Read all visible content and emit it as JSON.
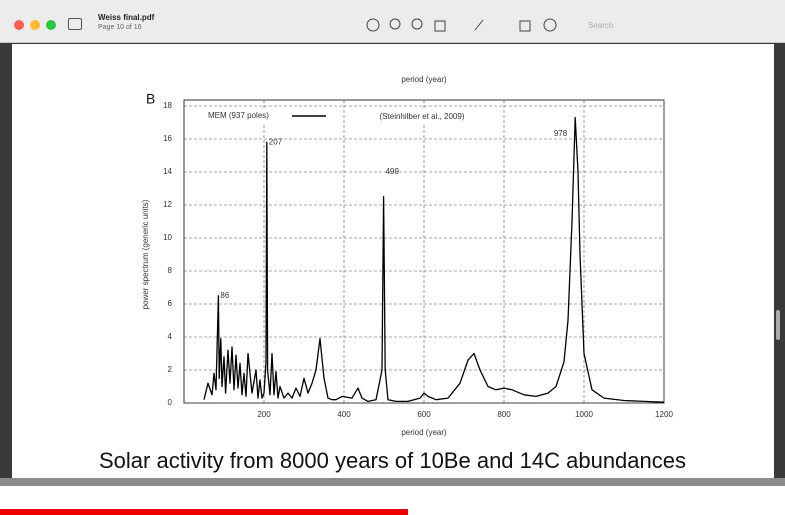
{
  "window": {
    "file_name": "Weiss final.pdf",
    "page_info": "Page 10 of 16",
    "search_placeholder": "Search"
  },
  "caption": "Solar activity from 8000 years of 10Be and 14C abundances",
  "chart_data": {
    "type": "line",
    "panel_label": "B",
    "top_axis_label": "period (year)",
    "xlabel": "period (year)",
    "ylabel": "power spectrum (generic units)",
    "legend_label": "MEM (937 poles)",
    "source_note": "(Steinhilber et al., 2009)",
    "annotations": [
      {
        "text": "86",
        "x": 86,
        "y": 6.5
      },
      {
        "text": "207",
        "x": 207,
        "y": 15.8
      },
      {
        "text": "499",
        "x": 499,
        "y": 14
      },
      {
        "text": "978",
        "x": 978,
        "y": 16.3
      }
    ],
    "xlim": [
      0,
      1200
    ],
    "ylim": [
      0,
      18
    ],
    "xticks": [
      200,
      400,
      600,
      800,
      1000,
      1200
    ],
    "yticks": [
      0,
      2,
      4,
      6,
      8,
      10,
      12,
      14,
      16,
      18
    ],
    "grid": true,
    "series": [
      {
        "name": "MEM (937 poles)",
        "color": "#000000",
        "x": [
          50,
          60,
          70,
          75,
          80,
          86,
          88,
          92,
          95,
          100,
          104,
          110,
          115,
          120,
          125,
          130,
          135,
          140,
          145,
          150,
          155,
          160,
          170,
          180,
          185,
          190,
          195,
          200,
          205,
          207,
          209,
          215,
          220,
          225,
          230,
          235,
          240,
          250,
          260,
          270,
          280,
          290,
          300,
          310,
          320,
          330,
          340,
          350,
          355,
          360,
          370,
          380,
          395,
          420,
          435,
          445,
          460,
          480,
          495,
          499,
          503,
          510,
          530,
          560,
          590,
          600,
          610,
          630,
          660,
          690,
          710,
          725,
          740,
          760,
          780,
          800,
          820,
          850,
          880,
          910,
          930,
          950,
          960,
          970,
          978,
          985,
          990,
          1000,
          1020,
          1050,
          1100,
          1150,
          1200
        ],
        "values": [
          0.2,
          1.2,
          0.5,
          1.8,
          0.8,
          6.5,
          1.5,
          3.9,
          1.0,
          2.8,
          0.6,
          3.2,
          1.2,
          3.4,
          0.8,
          2.9,
          0.9,
          2.4,
          0.5,
          1.8,
          0.4,
          3.0,
          0.6,
          2.0,
          0.3,
          1.4,
          0.3,
          0.6,
          2.5,
          15.8,
          2.0,
          0.5,
          3.0,
          0.5,
          1.9,
          0.3,
          1.0,
          0.3,
          0.6,
          0.3,
          0.9,
          0.4,
          1.5,
          0.6,
          1.2,
          2.0,
          3.9,
          1.5,
          0.9,
          0.3,
          0.2,
          0.2,
          0.4,
          0.3,
          0.9,
          0.3,
          0.1,
          0.2,
          2.0,
          12.5,
          2.0,
          0.2,
          0.1,
          0.1,
          0.3,
          0.6,
          0.4,
          0.2,
          0.3,
          1.2,
          2.6,
          3.0,
          2.0,
          1.0,
          0.8,
          0.9,
          0.8,
          0.5,
          0.4,
          0.6,
          1.0,
          2.5,
          5.0,
          11.0,
          17.3,
          14,
          9,
          3,
          0.8,
          0.3,
          0.15,
          0.1,
          0.05
        ]
      }
    ]
  }
}
